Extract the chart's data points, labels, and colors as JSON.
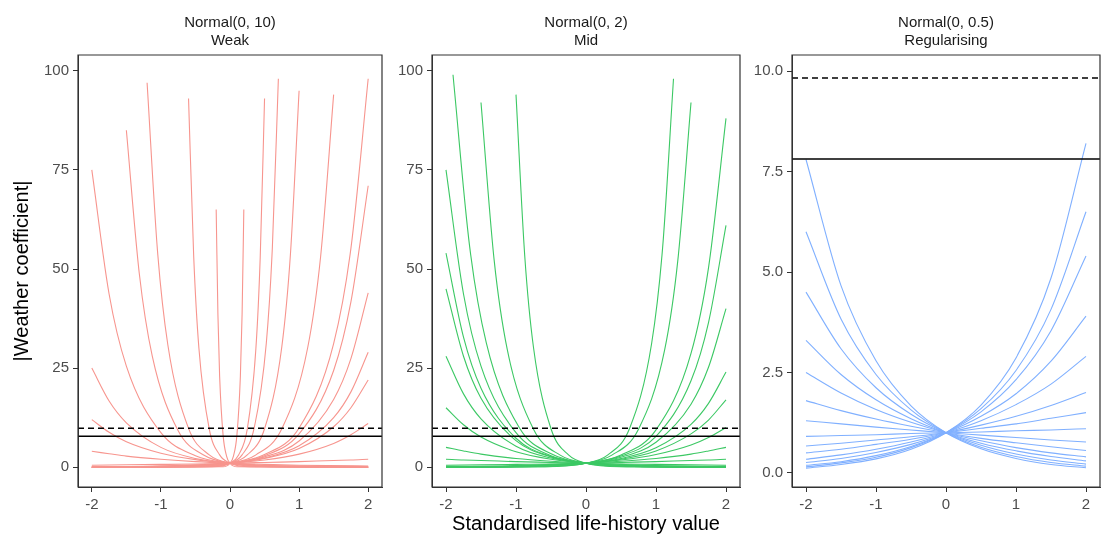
{
  "chart_data": [
    {
      "type": "line",
      "title": "Normal(0, 10)",
      "subtitle": "Weak",
      "ylabel": "|Weather coefficient|",
      "xlim": [
        -2.2,
        2.2
      ],
      "xticks": [
        -2,
        -1,
        0,
        1,
        2
      ],
      "ylim": [
        -5,
        104
      ],
      "yticks": [
        0,
        25,
        50,
        75,
        100
      ],
      "grid": false,
      "ref_lines": [
        {
          "axis": "y",
          "value": 9.8,
          "line_style": "dashed",
          "color": "#000000"
        },
        {
          "axis": "y",
          "value": 7.8,
          "line_style": "solid",
          "color": "#000000"
        }
      ],
      "series": [
        {
          "color": "#f7958e",
          "x": [
            -2,
            -1,
            -0.5,
            0,
            0.5,
            1,
            1.5,
            1.75,
            2
          ],
          "values": [
            0.0,
            0.1,
            0.3,
            1,
            3.2,
            9.9,
            31.2,
            55.2,
            98
          ]
        },
        {
          "color": "#f7958e",
          "x": [
            -2,
            -1,
            -0.5,
            0,
            0.5,
            1,
            1.5,
            1.75,
            2
          ],
          "values": [
            0.0,
            0.1,
            0.3,
            1,
            2.9,
            8.4,
            24.4,
            41.7,
            71
          ]
        },
        {
          "color": "#f7958e",
          "x": [
            -2,
            -1,
            -0.5,
            0,
            0.5,
            1,
            1.5,
            1.75,
            2
          ],
          "values": [
            0.0,
            0.2,
            0.4,
            1,
            2.6,
            6.6,
            17.1,
            27.4,
            44
          ]
        },
        {
          "color": "#f7958e",
          "x": [
            -2,
            -1,
            -0.5,
            0,
            0.5,
            1,
            1.5,
            1.75,
            2
          ],
          "values": [
            0.0,
            0.2,
            0.4,
            1,
            2.3,
            5.4,
            12.5,
            19.0,
            29
          ]
        },
        {
          "color": "#f7958e",
          "x": [
            -2,
            -1,
            -0.5,
            0,
            0.5,
            1,
            1.5,
            1.75,
            2
          ],
          "values": [
            0.0,
            0.2,
            0.5,
            1,
            2.2,
            4.7,
            10.2,
            15.0,
            22
          ]
        },
        {
          "color": "#f7958e",
          "x": [
            -2,
            -1,
            -0.5,
            0,
            0.5,
            1,
            1.5,
            1.75,
            2
          ],
          "values": [
            0.1,
            0.3,
            0.6,
            1,
            1.8,
            3.3,
            6.0,
            8.2,
            11
          ]
        },
        {
          "color": "#f7958e",
          "x": [
            -2,
            -1,
            -0.5,
            0,
            0.5,
            1,
            1.5,
            1.75,
            2
          ],
          "values": [
            0.5,
            0.7,
            0.8,
            1,
            1.2,
            1.4,
            1.7,
            1.8,
            2
          ]
        },
        {
          "color": "#f7958e",
          "x": [
            -2,
            -0.75,
            0,
            0.375,
            0.75,
            1.125,
            1.3125,
            1.5
          ],
          "values": [
            0,
            0.1,
            1,
            3.1,
            9.7,
            30.2,
            53.3,
            94
          ]
        },
        {
          "color": "#f7958e",
          "x": [
            -2,
            -0.5,
            0,
            0.25,
            0.5,
            0.75,
            0.875,
            1
          ],
          "values": [
            0,
            0.1,
            1,
            3.1,
            9.7,
            30.4,
            53.8,
            95
          ]
        },
        {
          "color": "#f7958e",
          "x": [
            -2,
            -0.35,
            0,
            0.175,
            0.35,
            0.525,
            0.6125,
            0.7
          ],
          "values": [
            0,
            0.1,
            1,
            3.1,
            9.9,
            31.2,
            55.2,
            98
          ]
        },
        {
          "color": "#f7958e",
          "x": [
            -2,
            -0.25,
            0,
            0.125,
            0.25,
            0.375,
            0.4375,
            0.5
          ],
          "values": [
            0,
            0.1,
            1,
            3.1,
            9.6,
            30,
            53,
            93
          ]
        },
        {
          "color": "#f7958e",
          "x": [
            -2,
            -0.1,
            0,
            0.05,
            0.1,
            0.15,
            0.175,
            0.2
          ],
          "values": [
            0,
            0.1,
            1,
            2.8,
            8.1,
            22.9,
            38.6,
            65
          ]
        },
        {
          "color": "#f7958e",
          "x": [
            -2,
            -1.75,
            -1.5,
            -1,
            -0.5,
            0,
            0.5,
            1,
            2
          ],
          "values": [
            75,
            43.7,
            25.5,
            8.7,
            2.9,
            1,
            0.3,
            0.1,
            0.0
          ]
        },
        {
          "color": "#f7958e",
          "x": [
            -2,
            -1.75,
            -1.5,
            -1,
            -0.5,
            0,
            0.5,
            1,
            2
          ],
          "values": [
            25,
            16.7,
            11.2,
            5,
            2.2,
            1,
            0.4,
            0.2,
            0.0
          ]
        },
        {
          "color": "#f7958e",
          "x": [
            -2,
            -1.75,
            -1.5,
            -1,
            -0.5,
            0,
            0.5,
            1,
            2
          ],
          "values": [
            12,
            8.8,
            6.4,
            3.5,
            1.9,
            1,
            0.5,
            0.3,
            0.1
          ]
        },
        {
          "color": "#f7958e",
          "x": [
            -2,
            -1.75,
            -1.5,
            -1,
            -0.5,
            0,
            0.5,
            1,
            2
          ],
          "values": [
            4,
            3.4,
            2.8,
            2,
            1.4,
            1,
            0.7,
            0.5,
            0.3
          ]
        },
        {
          "color": "#f7958e",
          "x": [
            -1.5,
            -1.3125,
            -1.125,
            -0.75,
            -0.375,
            0,
            0.75,
            2
          ],
          "values": [
            85,
            48.8,
            28.0,
            9.2,
            3.0,
            1,
            0.1,
            0
          ]
        },
        {
          "color": "#f7958e",
          "x": [
            -1.2,
            -1.05,
            -0.9,
            -0.6,
            -0.3,
            0,
            0.6,
            2
          ],
          "values": [
            97,
            54.7,
            30.9,
            9.8,
            3.1,
            1,
            0.1,
            0
          ]
        },
        {
          "color": "#f7958e",
          "x": [
            -0.6,
            -0.525,
            -0.45,
            -0.3,
            -0.15,
            0,
            0.3,
            2
          ],
          "values": [
            93,
            53,
            30,
            9.6,
            3.1,
            1,
            0.1,
            0
          ]
        },
        {
          "color": "#f7958e",
          "x": [
            -0.2,
            -0.175,
            -0.15,
            -0.1,
            -0.05,
            0,
            0.1,
            2
          ],
          "values": [
            65,
            38.6,
            22.9,
            8.1,
            2.8,
            1,
            0.1,
            0
          ]
        }
      ]
    },
    {
      "type": "line",
      "title": "Normal(0, 2)",
      "subtitle": "Mid",
      "xlabel": "Standardised life-history value",
      "xlim": [
        -2.2,
        2.2
      ],
      "xticks": [
        -2,
        -1,
        0,
        1,
        2
      ],
      "ylim": [
        -5,
        104
      ],
      "yticks": [
        0,
        25,
        50,
        75,
        100
      ],
      "grid": false,
      "ref_lines": [
        {
          "axis": "y",
          "value": 9.8,
          "line_style": "dashed",
          "color": "#000000"
        },
        {
          "axis": "y",
          "value": 7.8,
          "line_style": "solid",
          "color": "#000000"
        }
      ],
      "series": [
        {
          "color": "#3cc864",
          "x": [
            -2,
            -1,
            -0.5,
            0,
            0.5,
            1,
            1.5,
            1.75,
            2
          ],
          "values": [
            0.0,
            0.1,
            0.3,
            1,
            3.1,
            9.4,
            28.7,
            50.3,
            88
          ]
        },
        {
          "color": "#3cc864",
          "x": [
            -2,
            -1,
            -0.5,
            0,
            0.5,
            1,
            1.5,
            1.75,
            2
          ],
          "values": [
            0.0,
            0.1,
            0.4,
            1,
            2.8,
            7.8,
            21.8,
            36.5,
            61
          ]
        },
        {
          "color": "#3cc864",
          "x": [
            -2,
            -1,
            -0.5,
            0,
            0.5,
            1,
            1.5,
            1.75,
            2
          ],
          "values": [
            0.0,
            0.2,
            0.4,
            1,
            2.5,
            6.3,
            15.9,
            25.2,
            40
          ]
        },
        {
          "color": "#3cc864",
          "x": [
            -2,
            -1,
            -0.5,
            0,
            0.5,
            1,
            1.5,
            1.75,
            2
          ],
          "values": [
            0.0,
            0.2,
            0.5,
            1,
            2.2,
            4.9,
            10.8,
            16.1,
            24
          ]
        },
        {
          "color": "#3cc864",
          "x": [
            -2,
            -1,
            -0.5,
            0,
            0.5,
            1,
            1.5,
            1.75,
            2
          ],
          "values": [
            0.1,
            0.2,
            0.5,
            1,
            2.0,
            4.1,
            8.4,
            11.9,
            17
          ]
        },
        {
          "color": "#3cc864",
          "x": [
            -2,
            -1,
            -0.5,
            0,
            0.5,
            1,
            1.5,
            1.75,
            2
          ],
          "values": [
            0.1,
            0.3,
            0.6,
            1,
            1.8,
            3.2,
            5.6,
            7.5,
            10
          ]
        },
        {
          "color": "#3cc864",
          "x": [
            -2,
            -1,
            -0.5,
            0,
            0.5,
            1,
            1.5,
            1.75,
            2
          ],
          "values": [
            0.2,
            0.4,
            0.7,
            1,
            1.5,
            2.2,
            3.3,
            4.1,
            5
          ]
        },
        {
          "color": "#3cc864",
          "x": [
            -2,
            -1,
            -0.5,
            0,
            0.5,
            1,
            1.5,
            1.75,
            2
          ],
          "values": [
            0.5,
            0.7,
            0.8,
            1,
            1.2,
            1.4,
            1.7,
            1.8,
            2
          ]
        },
        {
          "color": "#3cc864",
          "x": [
            -2,
            -0.625,
            0,
            0.3125,
            0.625,
            0.9375,
            1.09375,
            1.25
          ],
          "values": [
            0,
            0.1,
            1,
            3.1,
            9.9,
            31.2,
            55.2,
            98
          ]
        },
        {
          "color": "#3cc864",
          "x": [
            -2,
            -0.75,
            0,
            0.375,
            0.75,
            1.125,
            1.3125,
            1.5
          ],
          "values": [
            0,
            0.1,
            1,
            3.1,
            9.6,
            29.7,
            52.3,
            92
          ]
        },
        {
          "color": "#3cc864",
          "x": [
            -2,
            -1.75,
            -1.5,
            -1,
            -0.5,
            0,
            0.5,
            1,
            2
          ],
          "values": [
            75,
            43.7,
            25.5,
            8.7,
            2.9,
            1,
            0.3,
            0.1,
            0.0
          ]
        },
        {
          "color": "#3cc864",
          "x": [
            -2,
            -1.75,
            -1.5,
            -1,
            -0.5,
            0,
            0.5,
            1,
            2
          ],
          "values": [
            54,
            32.8,
            19.9,
            7.3,
            2.7,
            1,
            0.4,
            0.1,
            0.0
          ]
        },
        {
          "color": "#3cc864",
          "x": [
            -2,
            -1.75,
            -1.5,
            -1,
            -0.5,
            0,
            0.5,
            1,
            2
          ],
          "values": [
            45,
            28.0,
            17.4,
            6.7,
            2.6,
            1,
            0.4,
            0.1,
            0.0
          ]
        },
        {
          "color": "#3cc864",
          "x": [
            -2,
            -1.75,
            -1.5,
            -1,
            -0.5,
            0,
            0.5,
            1,
            2
          ],
          "values": [
            28,
            18.5,
            12.2,
            5.3,
            2.3,
            1,
            0.4,
            0.2,
            0.0
          ]
        },
        {
          "color": "#3cc864",
          "x": [
            -2,
            -1.75,
            -1.5,
            -1,
            -0.5,
            0,
            0.5,
            1,
            2
          ],
          "values": [
            15,
            10.7,
            7.6,
            3.9,
            2.0,
            1,
            0.5,
            0.3,
            0.1
          ]
        },
        {
          "color": "#3cc864",
          "x": [
            -2,
            -1.75,
            -1.5,
            -1,
            -0.5,
            0,
            0.5,
            1,
            2
          ],
          "values": [
            5,
            4.1,
            3.3,
            2.2,
            1.5,
            1,
            0.7,
            0.4,
            0.2
          ]
        },
        {
          "color": "#3cc864",
          "x": [
            -2,
            -1.75,
            -1.5,
            -1,
            -0.5,
            0,
            0.5,
            1,
            2
          ],
          "values": [
            2,
            1.8,
            1.7,
            1.4,
            1.2,
            1,
            0.8,
            0.7,
            0.5
          ]
        },
        {
          "color": "#3cc864",
          "x": [
            -1.9,
            -1.6625,
            -1.425,
            -0.95,
            -0.475,
            0,
            0.95,
            2
          ],
          "values": [
            99,
            55.7,
            31.4,
            9.9,
            3.2,
            1,
            0.1,
            0.0
          ]
        },
        {
          "color": "#3cc864",
          "x": [
            -1.5,
            -1.3125,
            -1.125,
            -0.75,
            -0.375,
            0,
            0.75,
            2
          ],
          "values": [
            92,
            52.3,
            29.7,
            9.6,
            3.1,
            1,
            0.1,
            0.0
          ]
        },
        {
          "color": "#3cc864",
          "x": [
            -1,
            -0.875,
            -0.75,
            -0.5,
            -0.25,
            0,
            0.5,
            2
          ],
          "values": [
            94,
            53.3,
            30.2,
            9.7,
            3.1,
            1,
            0.1,
            0.0
          ]
        }
      ]
    },
    {
      "type": "line",
      "title": "Normal(0, 0.5)",
      "subtitle": "Regularising",
      "xlim": [
        -2.2,
        2.2
      ],
      "xticks": [
        -2,
        -1,
        0,
        1,
        2
      ],
      "ylim": [
        -0.35,
        10.4
      ],
      "yticks": [
        {
          "value": 0,
          "label": "0.0"
        },
        {
          "value": 2.5,
          "label": "2.5"
        },
        {
          "value": 5,
          "label": "5.0"
        },
        {
          "value": 7.5,
          "label": "7.5"
        },
        {
          "value": 10,
          "label": "10.0"
        }
      ],
      "grid": false,
      "ref_lines": [
        {
          "axis": "y",
          "value": 9.83,
          "line_style": "dashed",
          "color": "#000000"
        },
        {
          "axis": "y",
          "value": 7.81,
          "line_style": "solid",
          "color": "#000000"
        }
      ],
      "series": [
        {
          "color": "#80b0ff",
          "x": [
            -2,
            -1.5,
            -1,
            -0.5,
            0,
            0.5,
            1,
            1.5,
            2
          ],
          "values": [
            0.12,
            0.21,
            0.35,
            0.59,
            1,
            1.69,
            2.86,
            4.85,
            8.2
          ]
        },
        {
          "color": "#80b0ff",
          "x": [
            -2,
            -1.5,
            -1,
            -0.5,
            0,
            0.5,
            1,
            1.5,
            2
          ],
          "values": [
            0.15,
            0.25,
            0.39,
            0.63,
            1,
            1.6,
            2.55,
            4.07,
            6.5
          ]
        },
        {
          "color": "#80b0ff",
          "x": [
            -2,
            -1.5,
            -1,
            -0.5,
            0,
            0.5,
            1,
            1.5,
            2
          ],
          "values": [
            0.19,
            0.28,
            0.43,
            0.66,
            1,
            1.52,
            2.32,
            3.54,
            5.4
          ]
        },
        {
          "color": "#80b0ff",
          "x": [
            -2,
            -1.5,
            -1,
            -0.5,
            0,
            0.5,
            1,
            1.5,
            2
          ],
          "values": [
            0.26,
            0.36,
            0.51,
            0.71,
            1,
            1.41,
            1.97,
            2.78,
            3.9
          ]
        },
        {
          "color": "#80b0ff",
          "x": [
            -2,
            -1.5,
            -1,
            -0.5,
            0,
            0.5,
            1,
            1.5,
            2
          ],
          "values": [
            0.34,
            0.45,
            0.59,
            0.77,
            1,
            1.3,
            1.7,
            2.21,
            2.9
          ]
        },
        {
          "color": "#80b0ff",
          "x": [
            -2,
            -1.5,
            -1,
            -0.5,
            0,
            0.5,
            1,
            1.5,
            2
          ],
          "values": [
            0.5,
            0.59,
            0.71,
            0.84,
            1,
            1.19,
            1.41,
            1.68,
            2
          ]
        },
        {
          "color": "#80b0ff",
          "x": [
            -2,
            -1.5,
            -1,
            -0.5,
            0,
            0.5,
            1,
            1.5,
            2
          ],
          "values": [
            0.67,
            0.74,
            0.82,
            0.9,
            1,
            1.11,
            1.22,
            1.36,
            1.5
          ]
        },
        {
          "color": "#80b0ff",
          "x": [
            -2,
            -1.5,
            -1,
            -0.5,
            0,
            0.5,
            1,
            1.5,
            2
          ],
          "values": [
            0.91,
            0.93,
            0.95,
            0.98,
            1,
            1.02,
            1.05,
            1.07,
            1.1
          ]
        },
        {
          "color": "#80b0ff",
          "x": [
            -2,
            -1.5,
            -1,
            -0.5,
            0,
            0.5,
            1,
            1.5,
            2
          ],
          "values": [
            7.8,
            4.66,
            2.79,
            1.67,
            1,
            0.6,
            0.36,
            0.21,
            0.13
          ]
        },
        {
          "color": "#80b0ff",
          "x": [
            -2,
            -1.5,
            -1,
            -0.5,
            0,
            0.5,
            1,
            1.5,
            2
          ],
          "values": [
            6,
            3.83,
            2.45,
            1.57,
            1,
            0.64,
            0.41,
            0.26,
            0.17
          ]
        },
        {
          "color": "#80b0ff",
          "x": [
            -2,
            -1.5,
            -1,
            -0.5,
            0,
            0.5,
            1,
            1.5,
            2
          ],
          "values": [
            4.5,
            3.09,
            2.12,
            1.46,
            1,
            0.69,
            0.47,
            0.32,
            0.22
          ]
        },
        {
          "color": "#80b0ff",
          "x": [
            -2,
            -1.5,
            -1,
            -0.5,
            0,
            0.5,
            1,
            1.5,
            2
          ],
          "values": [
            3.3,
            2.45,
            1.82,
            1.35,
            1,
            0.74,
            0.55,
            0.41,
            0.3
          ]
        },
        {
          "color": "#80b0ff",
          "x": [
            -2,
            -1.5,
            -1,
            -0.5,
            0,
            0.5,
            1,
            1.5,
            2
          ],
          "values": [
            2.5,
            1.99,
            1.58,
            1.26,
            1,
            0.8,
            0.63,
            0.5,
            0.4
          ]
        },
        {
          "color": "#80b0ff",
          "x": [
            -2,
            -1.5,
            -1,
            -0.5,
            0,
            0.5,
            1,
            1.5,
            2
          ],
          "values": [
            1.8,
            1.55,
            1.34,
            1.16,
            1,
            0.86,
            0.75,
            0.65,
            0.56
          ]
        },
        {
          "color": "#80b0ff",
          "x": [
            -2,
            -1.5,
            -1,
            -0.5,
            0,
            0.5,
            1,
            1.5,
            2
          ],
          "values": [
            1.3,
            1.22,
            1.14,
            1.07,
            1,
            0.94,
            0.88,
            0.82,
            0.77
          ]
        }
      ]
    }
  ]
}
